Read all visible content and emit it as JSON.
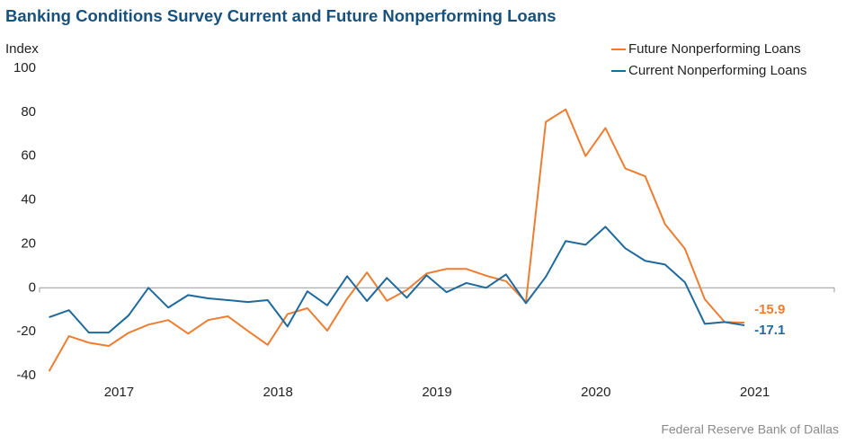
{
  "chart_data": {
    "type": "line",
    "title": "Banking Conditions Survey Current and Future Nonperforming Loans",
    "y_axis_label": "Index",
    "source": "Federal Reserve Bank of Dallas",
    "x": [
      2017.06,
      2017.185,
      2017.31,
      2017.435,
      2017.56,
      2017.685,
      2017.81,
      2017.935,
      2018.06,
      2018.185,
      2018.31,
      2018.435,
      2018.56,
      2018.685,
      2018.81,
      2018.935,
      2019.06,
      2019.185,
      2019.31,
      2019.435,
      2019.56,
      2019.685,
      2019.81,
      2019.935,
      2020.06,
      2020.185,
      2020.31,
      2020.435,
      2020.56,
      2020.685,
      2020.81,
      2020.935,
      2021.06,
      2021.185,
      2021.31,
      2021.435
    ],
    "series": [
      {
        "name": "Future Nonperforming Loans",
        "color": "#ed7d31",
        "values": [
          -38,
          -22,
          -25,
          -26.5,
          -20.5,
          -16.8,
          -14.7,
          -20.9,
          -14.7,
          -13,
          -19.6,
          -26,
          -12,
          -9.3,
          -19.5,
          -5,
          7,
          -5.9,
          -1,
          6.5,
          8.6,
          8.6,
          5.5,
          3,
          -6.5,
          75.6,
          81.3,
          60,
          72.8,
          54.4,
          50.8,
          29,
          17.8,
          -5.2,
          -15.6,
          -15.9
        ],
        "value_labels": [
          null,
          null,
          null,
          null,
          null,
          null,
          null,
          null,
          null,
          null,
          null,
          null,
          null,
          null,
          null,
          null,
          null,
          null,
          null,
          null,
          null,
          null,
          null,
          null,
          null,
          null,
          null,
          null,
          null,
          null,
          null,
          null,
          null,
          null,
          null,
          "-15.9"
        ]
      },
      {
        "name": "Current Nonperforming Loans",
        "color": "#1f6a9c",
        "values": [
          -13.4,
          -10.2,
          -20.4,
          -20.4,
          -12.6,
          0,
          -9,
          -3.3,
          -4.8,
          -5.6,
          -6.5,
          -5.6,
          -17.6,
          -1.6,
          -8,
          5.3,
          -6,
          4.5,
          -4.5,
          5.7,
          -2,
          2.2,
          0,
          6.1,
          -7,
          5,
          21.3,
          19.6,
          27.8,
          18,
          12.3,
          10.6,
          2.5,
          -16.4,
          -15.6,
          -17.1
        ],
        "value_labels": [
          null,
          null,
          null,
          null,
          null,
          null,
          null,
          null,
          null,
          null,
          null,
          null,
          null,
          null,
          null,
          null,
          null,
          null,
          null,
          null,
          null,
          null,
          null,
          null,
          null,
          null,
          null,
          null,
          null,
          null,
          null,
          null,
          null,
          null,
          null,
          "-17.1"
        ]
      }
    ],
    "xlim": [
      2017,
      2022
    ],
    "xticks": [
      {
        "value": 2017.5,
        "label": "2017"
      },
      {
        "value": 2018.5,
        "label": "2018"
      },
      {
        "value": 2019.5,
        "label": "2019"
      },
      {
        "value": 2020.5,
        "label": "2020"
      },
      {
        "value": 2021.5,
        "label": "2021"
      }
    ],
    "ylim": [
      -40,
      100
    ],
    "yticks": [
      -40,
      -20,
      0,
      20,
      40,
      60,
      80,
      100
    ],
    "grid": false,
    "legend": "top-right"
  }
}
